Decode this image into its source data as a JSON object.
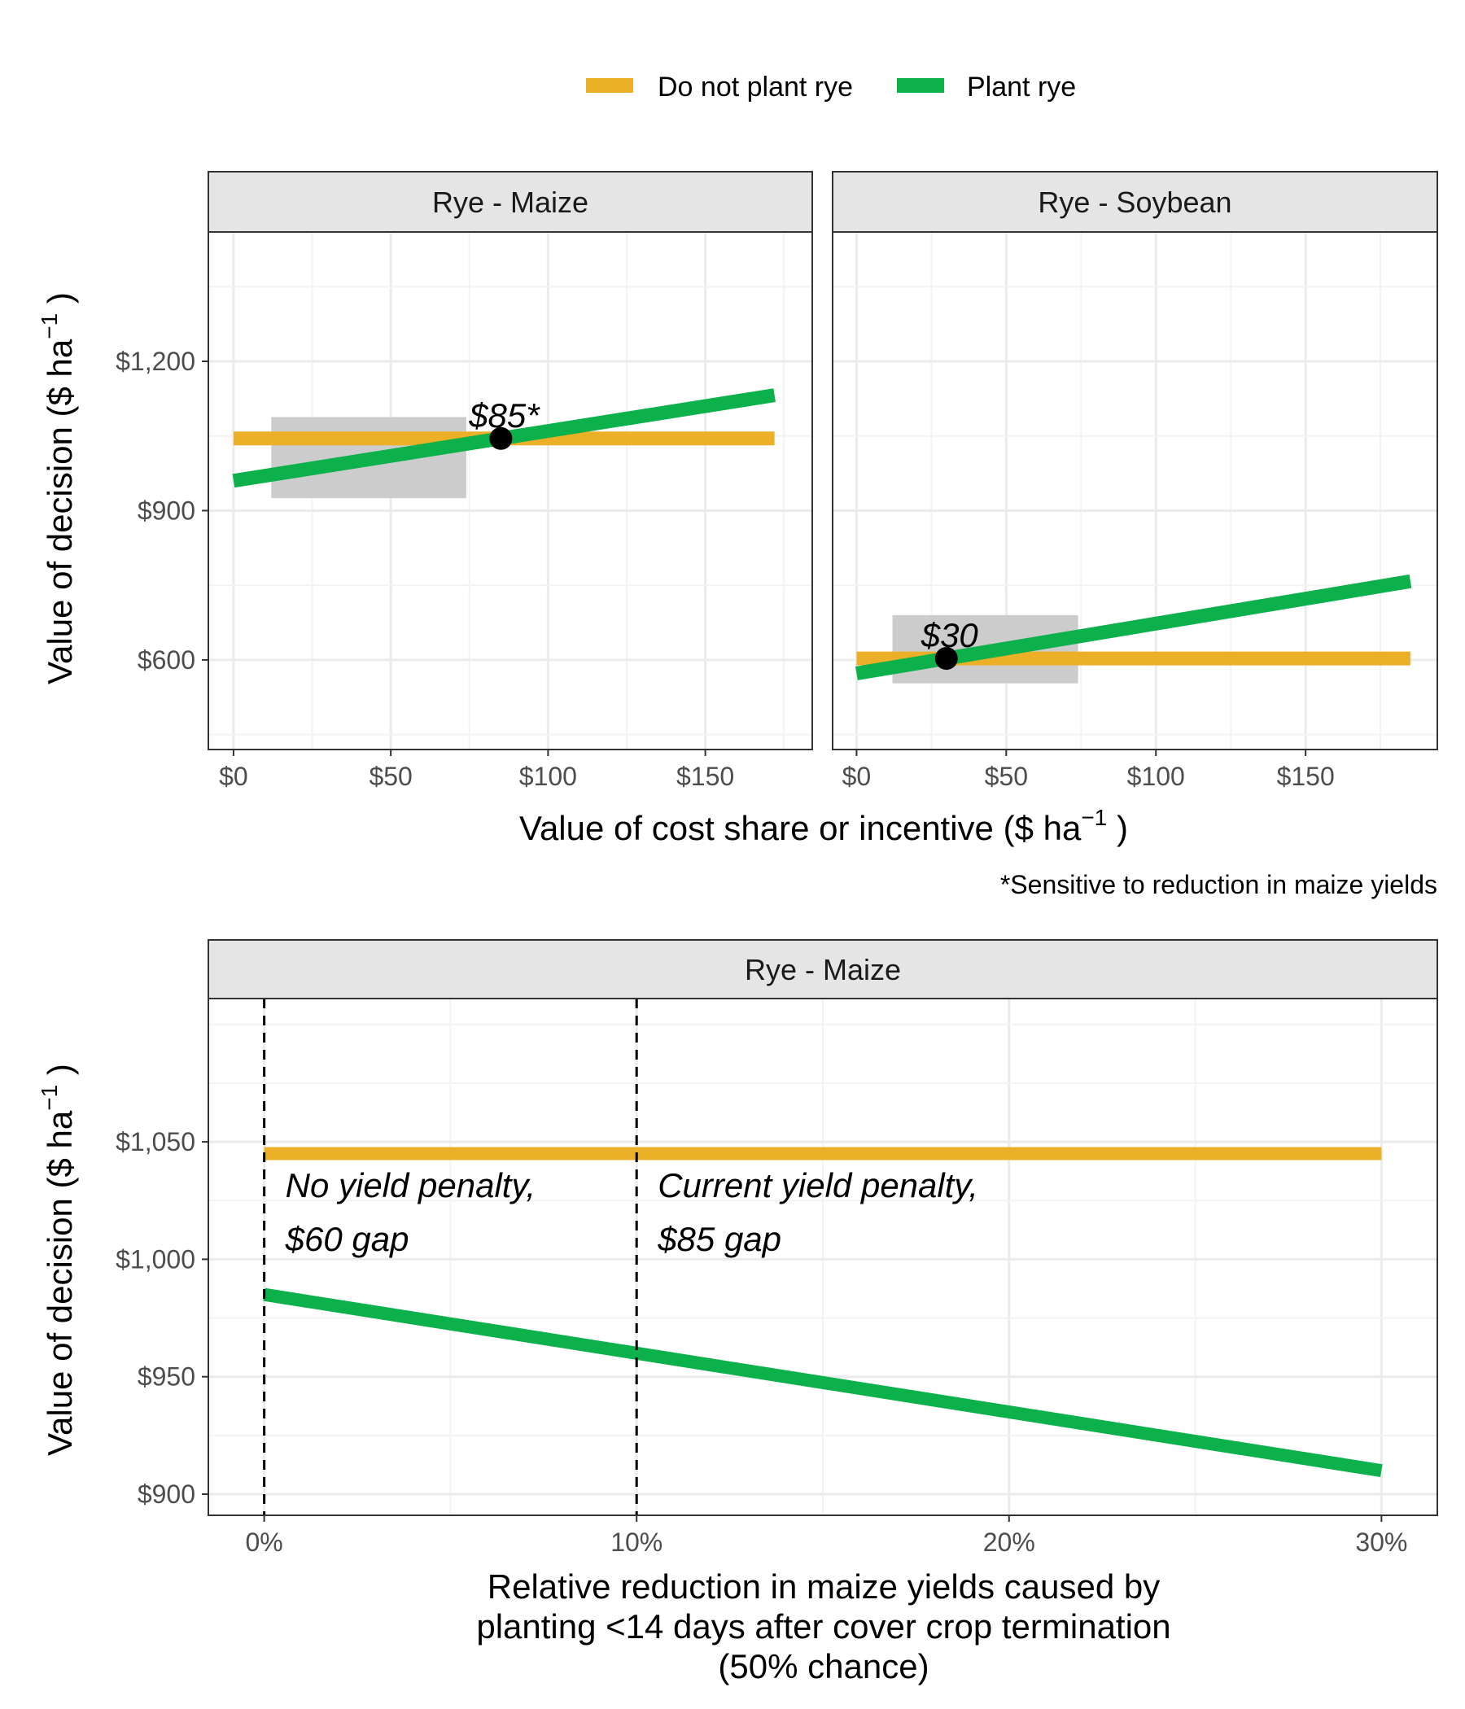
{
  "colors": {
    "do_not_plant": "#EBB028",
    "plant": "#0CB14B",
    "range_box": "#CCCCCC",
    "strip_bg": "#E5E5E5",
    "grid_major": "#EBEBEB",
    "grid_minor": "#F3F3F3"
  },
  "legend": {
    "items": [
      {
        "label": "Do not plant rye",
        "color": "#EBB028"
      },
      {
        "label": "Plant rye",
        "color": "#0CB14B"
      }
    ]
  },
  "top": {
    "x_title": "Value of cost share or incentive ($  ha",
    "x_title_exp": "−1",
    "x_title_close": ")",
    "y_title": "Value of decision ($  ha",
    "y_title_exp": "−1",
    "y_title_close": ")"
  },
  "note": "*Sensitive to reduction in maize yields",
  "bottom": {
    "x_title_lines": [
      "Relative reduction in maize yields caused by",
      "planting <14 days after cover crop termination",
      "(50% chance)"
    ],
    "y_title": "Value of decision ($  ha",
    "y_title_exp": "−1",
    "y_title_close": ")"
  },
  "chart_data": [
    {
      "type": "line",
      "panel": "Rye - Maize",
      "xlabel": "Value of cost share or incentive ($ ha−1)",
      "ylabel": "Value of decision ($ ha−1)",
      "xlim": [
        -8,
        184
      ],
      "ylim": [
        1775,
        1705
      ],
      "xlim_data": [
        -8,
        184
      ],
      "ylim_data": [
        730,
        1460
      ],
      "x_ticks": [
        0,
        50,
        100,
        150
      ],
      "x_tick_labels": [
        "$0",
        "$50",
        "$100",
        "$150"
      ],
      "y_ticks": [
        900,
        1200,
        600
      ],
      "y_tick_labels": [
        "$900",
        "$1,200",
        "$600"
      ],
      "series": [
        {
          "name": "Do not plant rye",
          "x": [
            0,
            172
          ],
          "y": [
            1045,
            1045
          ]
        },
        {
          "name": "Plant rye",
          "x": [
            0,
            172
          ],
          "y": [
            960,
            1132
          ]
        }
      ],
      "range_box": {
        "x": [
          12,
          74
        ],
        "y": [
          925,
          1088
        ]
      },
      "breakeven": {
        "x": 85,
        "y": 1045,
        "label": "$85*"
      }
    },
    {
      "type": "line",
      "panel": "Rye - Soybean",
      "xlabel": "Value of cost share or incentive ($ ha−1)",
      "ylabel": "Value of decision ($ ha−1)",
      "xlim": [
        -8,
        194
      ],
      "ylim": [
        730,
        1460
      ],
      "x_ticks": [
        0,
        50,
        100,
        150
      ],
      "x_tick_labels": [
        "$0",
        "$50",
        "$100",
        "$150"
      ],
      "y_ticks": [
        900,
        1200,
        600
      ],
      "y_tick_labels": [
        "$900",
        "$1,200",
        "$600"
      ],
      "series": [
        {
          "name": "Do not plant rye",
          "x": [
            0,
            185
          ],
          "y": [
            603,
            603
          ]
        },
        {
          "name": "Plant rye",
          "x": [
            0,
            185
          ],
          "y": [
            573,
            758
          ]
        }
      ],
      "range_box": {
        "x": [
          12,
          74
        ],
        "y": [
          553,
          690
        ]
      },
      "breakeven": {
        "x": 30,
        "y": 603,
        "label": "$30"
      }
    },
    {
      "type": "line",
      "panel": "Rye - Maize",
      "xlabel": "Relative reduction in maize yields caused by planting <14 days after cover crop termination (50% chance)",
      "ylabel": "Value of decision ($ ha−1)",
      "xlim": [
        -1.5,
        31.5
      ],
      "ylim": [
        891,
        1111
      ],
      "x_ticks": [
        0,
        10,
        20,
        30
      ],
      "x_tick_labels": [
        "0%",
        "10%",
        "20%",
        "30%"
      ],
      "y_ticks": [
        900,
        950,
        1000,
        1050
      ],
      "y_tick_labels": [
        "$900",
        "$950",
        "$1,000",
        "$1,050"
      ],
      "series": [
        {
          "name": "Do not plant rye",
          "x": [
            0,
            30
          ],
          "y": [
            1045,
            1045
          ]
        },
        {
          "name": "Plant rye",
          "x": [
            0,
            30
          ],
          "y": [
            985,
            910
          ]
        }
      ],
      "vlines": [
        0,
        10
      ],
      "annotations": [
        {
          "x": 0,
          "lines": [
            "No yield penalty,",
            "$60 gap"
          ]
        },
        {
          "x": 10,
          "lines": [
            "Current yield penalty,",
            "$85 gap"
          ]
        }
      ]
    }
  ]
}
